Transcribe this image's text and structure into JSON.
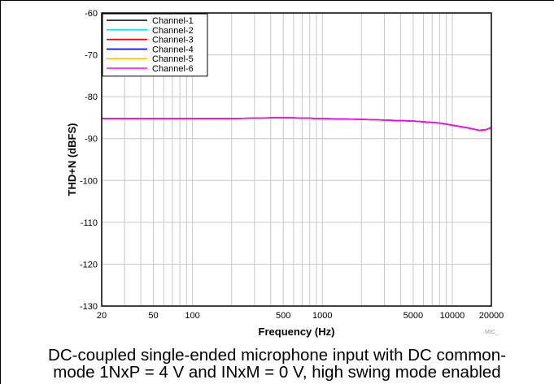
{
  "chart_data": {
    "type": "line",
    "xlabel": "Frequency (Hz)",
    "ylabel": "THD+N (dBFS)",
    "x_scale": "log",
    "xlim": [
      20,
      20000
    ],
    "ylim": [
      -130,
      -60
    ],
    "x_ticks": [
      20,
      50,
      100,
      500,
      1000,
      5000,
      10000,
      20000
    ],
    "x_tick_labels": [
      "20",
      "50",
      "100",
      "500",
      "1000",
      "5000",
      "10000",
      "20000"
    ],
    "y_ticks": [
      -60,
      -70,
      -80,
      -90,
      -100,
      -110,
      -120,
      -130
    ],
    "y_tick_labels": [
      "-60",
      "-70",
      "-80",
      "-90",
      "-100",
      "-110",
      "-120",
      "-130"
    ],
    "grid": true,
    "legend_position": "top-left",
    "series": [
      {
        "name": "Channel-1",
        "color": "#000000",
        "x": [
          20,
          50,
          100,
          200,
          500,
          1000,
          2000,
          5000,
          8000,
          10000,
          13000,
          16000,
          18000,
          20000
        ],
        "y": [
          -85.2,
          -85.2,
          -85.2,
          -85.2,
          -85.0,
          -85.2,
          -85.4,
          -85.8,
          -86.3,
          -86.8,
          -87.4,
          -88.0,
          -87.9,
          -87.4
        ]
      },
      {
        "name": "Channel-2",
        "color": "#00e5ee",
        "x": [
          20,
          50,
          100,
          200,
          500,
          1000,
          2000,
          5000,
          8000,
          10000,
          13000,
          16000,
          18000,
          20000
        ],
        "y": [
          -85.2,
          -85.2,
          -85.2,
          -85.2,
          -85.0,
          -85.2,
          -85.4,
          -85.8,
          -86.3,
          -86.8,
          -87.4,
          -88.0,
          -87.9,
          -87.4
        ]
      },
      {
        "name": "Channel-3",
        "color": "#ff0000",
        "x": [
          20,
          50,
          100,
          200,
          500,
          1000,
          2000,
          5000,
          8000,
          10000,
          13000,
          16000,
          18000,
          20000
        ],
        "y": [
          -85.2,
          -85.2,
          -85.2,
          -85.2,
          -85.0,
          -85.2,
          -85.4,
          -85.8,
          -86.3,
          -86.8,
          -87.4,
          -88.0,
          -87.9,
          -87.4
        ]
      },
      {
        "name": "Channel-4",
        "color": "#0000ff",
        "x": [
          20,
          50,
          100,
          200,
          500,
          1000,
          2000,
          5000,
          8000,
          10000,
          13000,
          16000,
          18000,
          20000
        ],
        "y": [
          -85.2,
          -85.2,
          -85.2,
          -85.2,
          -85.0,
          -85.2,
          -85.4,
          -85.8,
          -86.3,
          -86.8,
          -87.4,
          -88.0,
          -87.9,
          -87.4
        ]
      },
      {
        "name": "Channel-5",
        "color": "#ffc800",
        "x": [
          20,
          50,
          100,
          200,
          500,
          1000,
          2000,
          5000,
          8000,
          10000,
          13000,
          16000,
          18000,
          20000
        ],
        "y": [
          -85.2,
          -85.2,
          -85.2,
          -85.2,
          -85.0,
          -85.2,
          -85.4,
          -85.8,
          -86.3,
          -86.8,
          -87.4,
          -88.0,
          -87.9,
          -87.4
        ]
      },
      {
        "name": "Channel-6",
        "color": "#ff00ff",
        "x": [
          20,
          50,
          100,
          200,
          500,
          1000,
          2000,
          5000,
          8000,
          10000,
          13000,
          16000,
          18000,
          20000
        ],
        "y": [
          -85.2,
          -85.2,
          -85.2,
          -85.2,
          -85.0,
          -85.2,
          -85.4,
          -85.8,
          -86.3,
          -86.8,
          -87.4,
          -88.0,
          -87.9,
          -87.4
        ]
      }
    ]
  },
  "figure_id": "MIC_",
  "caption": {
    "line1": "DC-coupled single-ended microphone input with DC common-",
    "line2": "mode 1NxP = 4 V and INxM = 0 V, high swing mode enabled"
  }
}
